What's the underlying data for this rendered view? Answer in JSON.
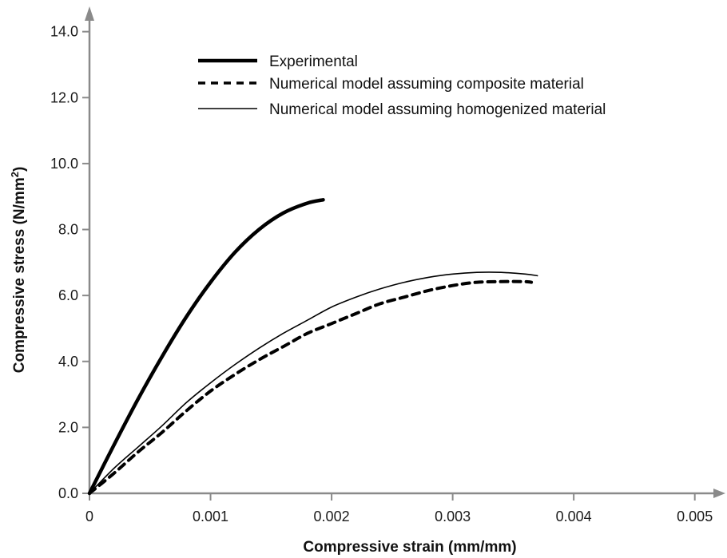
{
  "chart_data": {
    "type": "line",
    "xlabel": "Compressive strain (mm/mm)",
    "ylabel_main": "Compressive stress (N/mm",
    "ylabel_sup": "2",
    "ylabel_tail": ")",
    "xlim": [
      0,
      0.0052
    ],
    "ylim": [
      0,
      14.5
    ],
    "x_ticks": [
      0,
      0.001,
      0.002,
      0.003,
      0.004,
      0.005
    ],
    "x_tick_labels": [
      "0",
      "0.001",
      "0.002",
      "0.003",
      "0.004",
      "0.005"
    ],
    "y_ticks": [
      0,
      2,
      4,
      6,
      8,
      10,
      12,
      14
    ],
    "y_tick_labels": [
      "0.0",
      "2.0",
      "4.0",
      "6.0",
      "8.0",
      "10.0",
      "12.0",
      "14.0"
    ],
    "grid": false,
    "legend_position": "top-right",
    "series": [
      {
        "name": "Experimental",
        "style": "thick",
        "color": "#000000",
        "x": [
          0,
          0.0002,
          0.0004,
          0.0006,
          0.0008,
          0.001,
          0.0012,
          0.0014,
          0.0016,
          0.0018,
          0.00193
        ],
        "y": [
          0,
          1.45,
          2.85,
          4.15,
          5.35,
          6.4,
          7.3,
          8.0,
          8.5,
          8.8,
          8.9
        ]
      },
      {
        "name": "Numerical model assuming composite material",
        "style": "dashed",
        "color": "#000000",
        "x": [
          0,
          0.0002,
          0.0004,
          0.0006,
          0.0008,
          0.001,
          0.0012,
          0.0014,
          0.0016,
          0.0018,
          0.002,
          0.0022,
          0.0024,
          0.0026,
          0.0028,
          0.003,
          0.0032,
          0.0034,
          0.0036,
          0.00365
        ],
        "y": [
          0,
          0.6,
          1.25,
          1.85,
          2.5,
          3.1,
          3.6,
          4.05,
          4.45,
          4.85,
          5.15,
          5.45,
          5.75,
          5.95,
          6.15,
          6.3,
          6.4,
          6.42,
          6.42,
          6.4
        ]
      },
      {
        "name": "Numerical model assuming homogenized material",
        "style": "thin",
        "color": "#000000",
        "x": [
          0,
          0.0002,
          0.0004,
          0.0006,
          0.0008,
          0.001,
          0.0012,
          0.0014,
          0.0016,
          0.0018,
          0.002,
          0.0022,
          0.0024,
          0.0026,
          0.0028,
          0.003,
          0.0032,
          0.0034,
          0.0036,
          0.0037
        ],
        "y": [
          0,
          0.75,
          1.4,
          2.05,
          2.75,
          3.35,
          3.9,
          4.4,
          4.85,
          5.25,
          5.65,
          5.95,
          6.2,
          6.4,
          6.55,
          6.65,
          6.7,
          6.7,
          6.65,
          6.6
        ]
      }
    ]
  }
}
